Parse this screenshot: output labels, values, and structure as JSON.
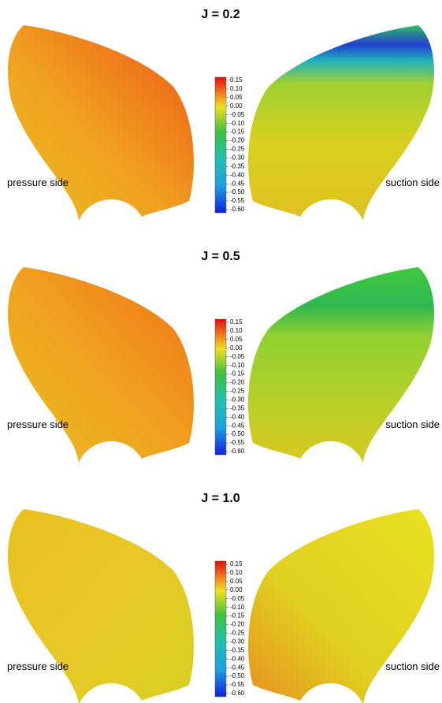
{
  "panels": [
    {
      "title": "J = 0.2",
      "left_label": "pressure side",
      "right_label": "suction side",
      "colorbar": [
        "0.15",
        "0.10",
        "0.05",
        "0.00",
        "-0.05",
        "-0.10",
        "-0.15",
        "-0.20",
        "-0.25",
        "-0.30",
        "-0.35",
        "-0.40",
        "-0.45",
        "-0.50",
        "-0.55",
        "-0.60"
      ]
    },
    {
      "title": "J = 0.5",
      "left_label": "pressure side",
      "right_label": "suction side",
      "colorbar": [
        "0.15",
        "0.10",
        "0.05",
        "0.00",
        "-0.05",
        "-0.10",
        "-0.15",
        "-0.20",
        "-0.25",
        "-0.30",
        "-0.35",
        "-0.40",
        "-0.45",
        "-0.50",
        "-0.55",
        "-0.60"
      ]
    },
    {
      "title": "J = 1.0",
      "left_label": "pressure side",
      "right_label": "suction side",
      "colorbar": [
        "0.15",
        "0.10",
        "0.05",
        "0.00",
        "-0.05",
        "-0.10",
        "-0.15",
        "-0.20",
        "-0.25",
        "-0.30",
        "-0.35",
        "-0.40",
        "-0.45",
        "-0.50",
        "-0.55",
        "-0.60"
      ]
    }
  ]
}
